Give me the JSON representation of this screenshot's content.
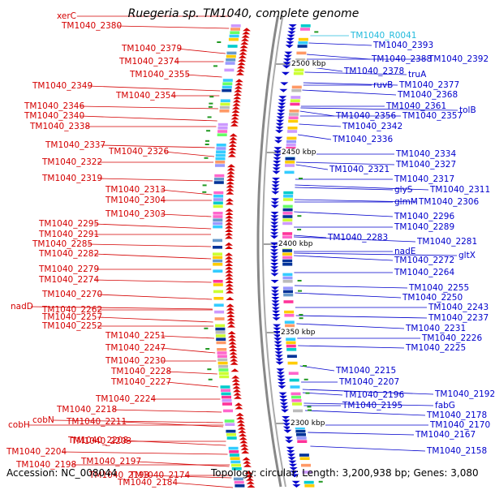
{
  "title": "Ruegeria sp. TM1040, complete genome",
  "footer": {
    "accession": "Accession: NC_008044",
    "info": "Topology: circular; Length: 3,200,938 bp; Genes: 3,080"
  },
  "colors": {
    "minus_strand": "#d40000",
    "plus_strand": "#0000cc",
    "rna": "#22bbdd"
  },
  "kbp_markers": [
    "2500 kbp",
    "2450 kbp",
    "2400 kbp",
    "2350 kbp",
    "2300 kbp"
  ],
  "left_labels": [
    "xerC",
    "TM1040_2380",
    "TM1040_2379",
    "TM1040_2374",
    "TM1040_2355",
    "TM1040_2349",
    "TM1040_2354",
    "TM1040_2346",
    "TM1040_2340",
    "TM1040_2338",
    "TM1040_2337",
    "TM1040_2326",
    "TM1040_2322",
    "TM1040_2319",
    "TM1040_2313",
    "TM1040_2304",
    "TM1040_2303",
    "TM1040_2295",
    "TM1040_2291",
    "TM1040_2285",
    "TM1040_2282",
    "TM1040_2279",
    "TM1040_2274",
    "TM1040_2270",
    "TM1040_2262",
    "nadD",
    "TM1040_2257",
    "TM1040_2252",
    "TM1040_2251",
    "TM1040_2247",
    "TM1040_2230",
    "TM1040_2228",
    "TM1040_2227",
    "TM1040_2224",
    "TM1040_2218",
    "TM1040_2211",
    "cobH",
    "cobN",
    "TM1040_2208",
    "TM1040_2203",
    "TM1040_2204",
    "TM1040_2197",
    "TM1040_2198",
    "TM1040_2193",
    "TM1040_2184",
    "TM1040_2174"
  ],
  "right_labels": [
    "TM1040_R0041",
    "TM1040_2393",
    "TM1040_2388",
    "TM1040_2392",
    "truA",
    "TM1040_2378",
    "ruvB",
    "TM1040_2377",
    "TM1040_2368",
    "TM1040_2361",
    "tolB",
    "TM1040_2356",
    "TM1040_2357",
    "TM1040_2342",
    "TM1040_2336",
    "TM1040_2334",
    "TM1040_2327",
    "TM1040_2321",
    "TM1040_2317",
    "glyS",
    "TM1040_2311",
    "glmM",
    "TM1040_2306",
    "TM1040_2296",
    "TM1040_2289",
    "TM1040_2283",
    "TM1040_2281",
    "nadE",
    "gltX",
    "TM1040_2272",
    "TM1040_2264",
    "TM1040_2255",
    "TM1040_2250",
    "TM1040_2243",
    "TM1040_2237",
    "TM1040_2231",
    "TM1040_2226",
    "TM1040_2225",
    "TM1040_2215",
    "TM1040_2207",
    "TM1040_2196",
    "TM1040_2192",
    "TM1040_2195",
    "fabG",
    "TM1040_2178",
    "TM1040_2170",
    "TM1040_2167",
    "TM1040_2158"
  ]
}
